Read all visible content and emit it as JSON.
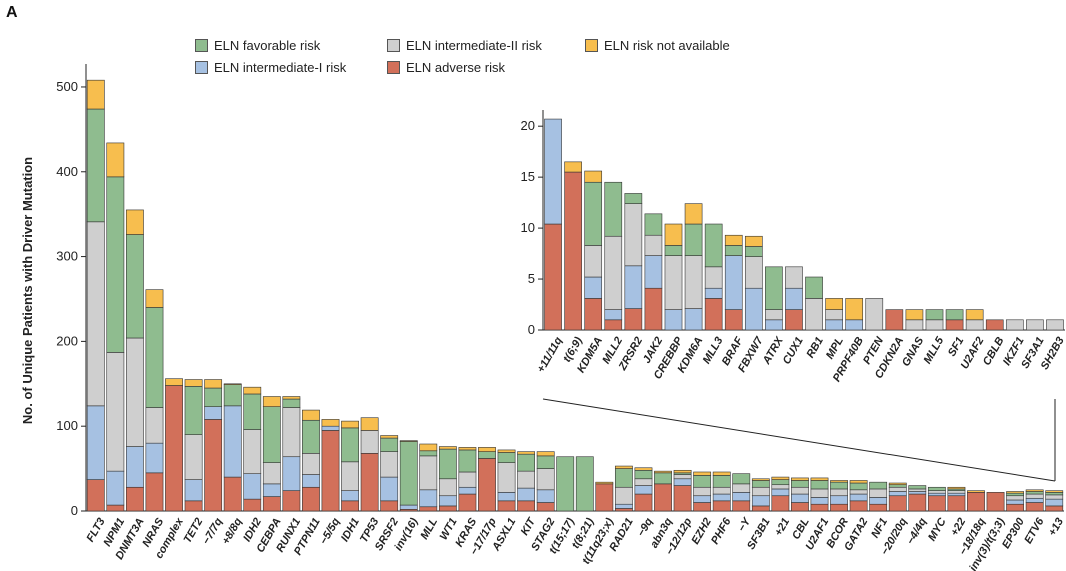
{
  "panel_label": "A",
  "colors": {
    "favorable": "#8fbc8f",
    "intermediate1": "#a6c1e2",
    "intermediate2": "#cfcfcf",
    "adverse": "#d2705a",
    "na": "#f7be4e"
  },
  "legend": {
    "favorable": "ELN favorable risk",
    "intermediate1": "ELN intermediate-I risk",
    "intermediate2": "ELN intermediate-II risk",
    "adverse": "ELN adverse risk",
    "na": "ELN risk not available"
  },
  "chart_data": [
    {
      "type": "bar",
      "stacked": true,
      "ylabel": "No. of Unique Patients with Driver Mutation",
      "ylim": [
        0,
        520
      ],
      "yticks": [
        0,
        100,
        200,
        300,
        400,
        500
      ],
      "stack_order": [
        "adverse",
        "intermediate1",
        "intermediate2",
        "favorable",
        "na"
      ],
      "categories": [
        "FLT3",
        "NPM1",
        "DNMT3A",
        "NRAS",
        "complex",
        "TET2",
        "−7/7q",
        "+8/8q",
        "IDH2",
        "CEBPA",
        "RUNX1",
        "PTPN11",
        "−5/5q",
        "IDH1",
        "TP53",
        "SRSF2",
        "inv(16)",
        "MLL",
        "WT1",
        "KRAS",
        "−17/17p",
        "ASXL1",
        "KIT",
        "STAG2",
        "t(15;17)",
        "t(8;21)",
        "t(11q23;x)",
        "RAD21",
        "−9q",
        "abn3q",
        "−12/12p",
        "EZH2",
        "PHF6",
        "−Y",
        "SF3B1",
        "+21",
        "CBL",
        "U2AF1",
        "BCOR",
        "GATA2",
        "NF1",
        "−20/20q",
        "−4/4q",
        "MYC",
        "+22",
        "−18/18q",
        "inv(3)/t(3;3)",
        "EP300",
        "ETV6",
        "+13"
      ],
      "series": [
        {
          "name": "ELN adverse risk",
          "key": "adverse",
          "values": [
            37,
            7,
            28,
            45,
            148,
            12,
            108,
            40,
            14,
            17,
            24,
            28,
            95,
            12,
            68,
            12,
            2,
            5,
            6,
            20,
            62,
            12,
            12,
            10,
            0,
            0,
            32,
            3,
            20,
            32,
            30,
            10,
            12,
            12,
            6,
            18,
            10,
            8,
            8,
            12,
            8,
            18,
            20,
            18,
            18,
            22,
            22,
            8,
            10,
            6
          ]
        },
        {
          "name": "ELN intermediate-I risk",
          "key": "intermediate1",
          "values": [
            87,
            40,
            48,
            35,
            0,
            25,
            15,
            84,
            30,
            15,
            40,
            15,
            5,
            12,
            0,
            28,
            5,
            20,
            12,
            8,
            0,
            10,
            15,
            15,
            0,
            0,
            0,
            5,
            10,
            0,
            8,
            8,
            8,
            10,
            12,
            8,
            10,
            8,
            10,
            8,
            8,
            5,
            3,
            3,
            3,
            0,
            0,
            5,
            5,
            8
          ]
        },
        {
          "name": "ELN intermediate-II risk",
          "key": "intermediate2",
          "values": [
            217,
            140,
            128,
            42,
            0,
            53,
            0,
            0,
            52,
            25,
            58,
            25,
            0,
            34,
            27,
            30,
            0,
            40,
            20,
            18,
            0,
            35,
            20,
            25,
            0,
            0,
            0,
            20,
            8,
            0,
            5,
            10,
            8,
            10,
            10,
            5,
            8,
            10,
            8,
            5,
            10,
            5,
            3,
            3,
            3,
            0,
            0,
            5,
            5,
            5
          ]
        },
        {
          "name": "ELN favorable risk",
          "key": "favorable",
          "values": [
            133,
            207,
            122,
            118,
            0,
            57,
            22,
            25,
            42,
            66,
            10,
            39,
            0,
            40,
            0,
            16,
            75,
            6,
            35,
            26,
            8,
            12,
            20,
            15,
            64,
            64,
            0,
            22,
            10,
            13,
            2,
            14,
            14,
            12,
            8,
            6,
            8,
            10,
            8,
            8,
            8,
            3,
            4,
            4,
            2,
            0,
            0,
            3,
            3,
            3
          ]
        },
        {
          "name": "ELN risk not available",
          "key": "na",
          "values": [
            34,
            40,
            29,
            21,
            8,
            8,
            10,
            1,
            8,
            12,
            3,
            12,
            8,
            8,
            15,
            3,
            1,
            8,
            3,
            3,
            5,
            3,
            3,
            5,
            0,
            0,
            2,
            3,
            3,
            2,
            3,
            4,
            4,
            0,
            2,
            3,
            3,
            3,
            2,
            3,
            0,
            2,
            0,
            0,
            2,
            2,
            0,
            2,
            2,
            2
          ]
        }
      ]
    },
    {
      "type": "bar",
      "stacked": true,
      "inset": true,
      "ylim": [
        0,
        21
      ],
      "yticks": [
        0,
        5,
        10,
        15,
        20
      ],
      "stack_order": [
        "adverse",
        "intermediate1",
        "intermediate2",
        "favorable",
        "na"
      ],
      "categories": [
        "+11/11q",
        "t(6;9)",
        "KDM5A",
        "MLL2",
        "ZRSR2",
        "JAK2",
        "CREBBP",
        "KDM6A",
        "MLL3",
        "BRAF",
        "FBXW7",
        "ATRX",
        "CUX1",
        "RB1",
        "MPL",
        "PRPF40B",
        "PTEN",
        "CDKN2A",
        "GNAS",
        "MLL5",
        "SF1",
        "U2AF2",
        "CBLB",
        "IKZF1",
        "SF3A1",
        "SH2B3"
      ],
      "series": [
        {
          "name": "ELN adverse risk",
          "key": "adverse",
          "values": [
            10.4,
            15.5,
            3.1,
            1,
            2.1,
            4.1,
            0,
            0,
            3.1,
            2,
            0,
            0,
            2,
            0,
            0,
            0,
            0,
            2,
            0,
            0,
            1,
            0,
            1,
            0,
            0,
            0
          ]
        },
        {
          "name": "ELN intermediate-I risk",
          "key": "intermediate1",
          "values": [
            10.3,
            0,
            2.1,
            1,
            4.2,
            3.2,
            2,
            2.1,
            1,
            5.3,
            4.1,
            1,
            2.1,
            0,
            1,
            1,
            0,
            0,
            0,
            0,
            0,
            0,
            0,
            0,
            0,
            0
          ]
        },
        {
          "name": "ELN intermediate-II risk",
          "key": "intermediate2",
          "values": [
            0,
            0,
            3.1,
            7.2,
            6.1,
            2,
            5.3,
            5.2,
            2.1,
            0,
            3.1,
            1,
            2.1,
            3.1,
            1,
            0,
            3.1,
            0,
            1,
            1,
            0,
            1,
            0,
            1,
            1,
            1
          ]
        },
        {
          "name": "ELN favorable risk",
          "key": "favorable",
          "values": [
            0,
            0,
            6.2,
            5.3,
            1,
            2.1,
            1,
            3.1,
            4.2,
            1,
            1,
            4.2,
            0,
            2.1,
            0,
            0,
            0,
            0,
            0,
            1,
            1,
            0,
            0,
            0,
            0,
            0
          ]
        },
        {
          "name": "ELN risk not available",
          "key": "na",
          "values": [
            0,
            1,
            1.1,
            0,
            0,
            0,
            2.1,
            2,
            0,
            1,
            1,
            0,
            0,
            0,
            1.1,
            2.1,
            0,
            0,
            1,
            0,
            0,
            1,
            0,
            0,
            0,
            0
          ]
        }
      ]
    }
  ]
}
